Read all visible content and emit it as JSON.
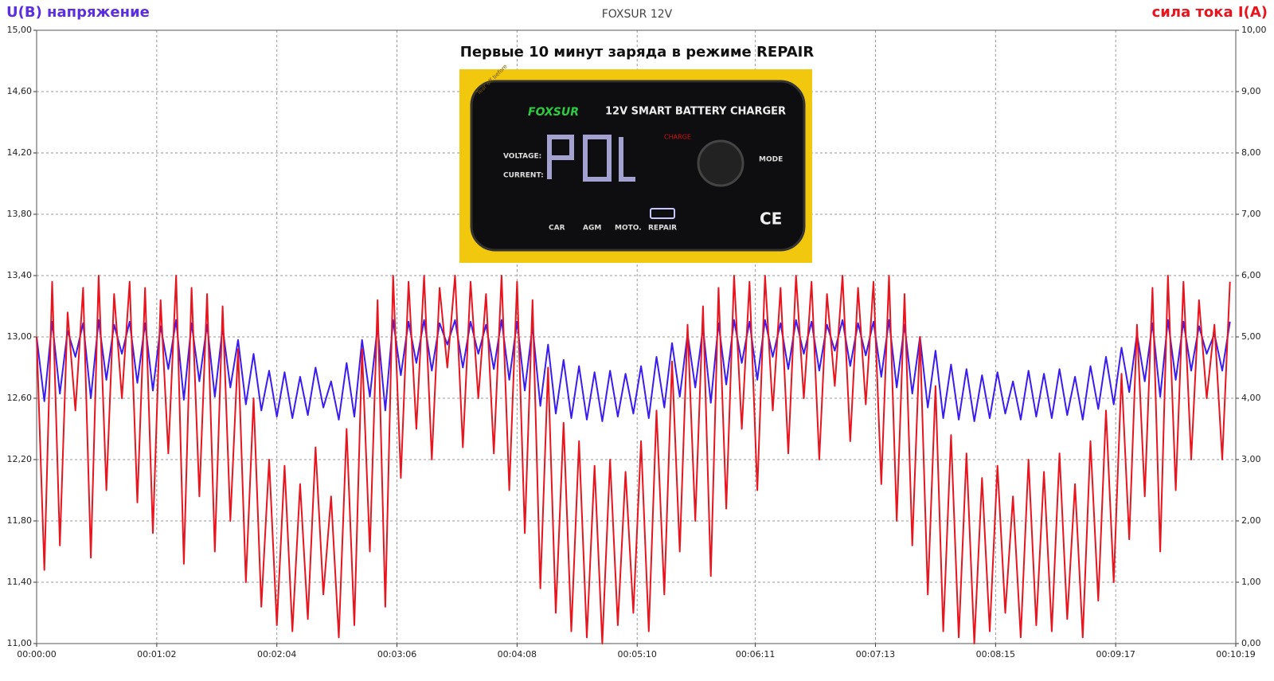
{
  "chart_data": {
    "type": "line",
    "title": "FOXSUR 12V",
    "annotation": "Первые 10 минут заряда в режиме REPAIR",
    "y_label": "U(B) напряжение",
    "y2_label": "сила тока I(A)",
    "inset": {
      "sticker": "Tear off before",
      "brand": "FOXSUR",
      "model": "12V SMART BATTERY CHARGER",
      "labels": [
        "VOLTAGE:",
        "CURRENT:",
        "CHARGE",
        "MODE",
        "CAR",
        "AGM",
        "MOTO.",
        "REPAIR"
      ]
    },
    "grid": true,
    "xlim": [
      0,
      619
    ],
    "xticks": [
      {
        "value": 0,
        "label": "00:00:00"
      },
      {
        "value": 62,
        "label": "00:01:02"
      },
      {
        "value": 124,
        "label": "00:02:04"
      },
      {
        "value": 186,
        "label": "00:03:06"
      },
      {
        "value": 248,
        "label": "00:04:08"
      },
      {
        "value": 310,
        "label": "00:05:10"
      },
      {
        "value": 371,
        "label": "00:06:11"
      },
      {
        "value": 433,
        "label": "00:07:13"
      },
      {
        "value": 495,
        "label": "00:08:15"
      },
      {
        "value": 557,
        "label": "00:09:17"
      },
      {
        "value": 619,
        "label": "00:10:19"
      }
    ],
    "ylim": [
      11,
      15
    ],
    "yticks": [
      {
        "value": 11,
        "label": "11,00"
      },
      {
        "value": 11.4,
        "label": "11,40"
      },
      {
        "value": 11.8,
        "label": "11,80"
      },
      {
        "value": 12.2,
        "label": "12,20"
      },
      {
        "value": 12.6,
        "label": "12,60"
      },
      {
        "value": 13,
        "label": "13,00"
      },
      {
        "value": 13.4,
        "label": "13,40"
      },
      {
        "value": 13.8,
        "label": "13,80"
      },
      {
        "value": 14.2,
        "label": "14,20"
      },
      {
        "value": 14.6,
        "label": "14,60"
      },
      {
        "value": 15,
        "label": "15,00"
      }
    ],
    "y2lim": [
      0,
      10
    ],
    "y2ticks": [
      {
        "value": 0,
        "label": "0,00"
      },
      {
        "value": 1,
        "label": "1,00"
      },
      {
        "value": 2,
        "label": "2,00"
      },
      {
        "value": 3,
        "label": "3,00"
      },
      {
        "value": 4,
        "label": "4,00"
      },
      {
        "value": 5,
        "label": "5,00"
      },
      {
        "value": 6,
        "label": "6,00"
      },
      {
        "value": 7,
        "label": "7,00"
      },
      {
        "value": 8,
        "label": "8,00"
      },
      {
        "value": 9,
        "label": "9,00"
      },
      {
        "value": 10,
        "label": "10,00"
      }
    ],
    "x": [
      0,
      4,
      8,
      12,
      16,
      20,
      24,
      28,
      32,
      36,
      40,
      44,
      48,
      52,
      56,
      60,
      64,
      68,
      72,
      76,
      80,
      84,
      88,
      92,
      96,
      100,
      104,
      108,
      112,
      116,
      120,
      124,
      128,
      132,
      136,
      140,
      144,
      148,
      152,
      156,
      160,
      164,
      168,
      172,
      176,
      180,
      184,
      188,
      192,
      196,
      200,
      204,
      208,
      212,
      216,
      220,
      224,
      228,
      232,
      236,
      240,
      244,
      248,
      252,
      256,
      260,
      264,
      268,
      272,
      276,
      280,
      284,
      288,
      292,
      296,
      300,
      304,
      308,
      312,
      316,
      320,
      324,
      328,
      332,
      336,
      340,
      344,
      348,
      352,
      356,
      360,
      364,
      368,
      372,
      376,
      380,
      384,
      388,
      392,
      396,
      400,
      404,
      408,
      412,
      416,
      420,
      424,
      428,
      432,
      436,
      440,
      444,
      448,
      452,
      456,
      460,
      464,
      468,
      472,
      476,
      480,
      484,
      488,
      492,
      496,
      500,
      504,
      508,
      512,
      516,
      520,
      524,
      528,
      532,
      536,
      540,
      544,
      548,
      552,
      556,
      560,
      564,
      568,
      572,
      576,
      580,
      584,
      588,
      592,
      596,
      600,
      604,
      608,
      612,
      616
    ],
    "series": [
      {
        "color": "#3a1cf0",
        "axis": "y",
        "values": [
          13.0,
          12.58,
          13.1,
          12.63,
          13.04,
          12.87,
          13.09,
          12.6,
          13.11,
          12.72,
          13.08,
          12.89,
          13.1,
          12.7,
          13.09,
          12.65,
          13.07,
          12.79,
          13.11,
          12.59,
          13.09,
          12.71,
          13.08,
          12.61,
          13.06,
          12.67,
          12.98,
          12.56,
          12.89,
          12.52,
          12.78,
          12.48,
          12.77,
          12.47,
          12.74,
          12.49,
          12.8,
          12.54,
          12.71,
          12.46,
          12.83,
          12.48,
          12.98,
          12.61,
          13.07,
          12.52,
          13.11,
          12.75,
          13.1,
          12.83,
          13.11,
          12.78,
          13.09,
          12.95,
          13.11,
          12.8,
          13.1,
          12.89,
          13.08,
          12.79,
          13.11,
          12.72,
          13.1,
          12.65,
          13.07,
          12.55,
          12.95,
          12.5,
          12.85,
          12.47,
          12.81,
          12.46,
          12.77,
          12.45,
          12.78,
          12.48,
          12.76,
          12.5,
          12.81,
          12.47,
          12.87,
          12.54,
          12.96,
          12.61,
          13.02,
          12.67,
          13.06,
          12.57,
          13.09,
          12.69,
          13.11,
          12.83,
          13.1,
          12.72,
          13.11,
          12.87,
          13.09,
          12.79,
          13.11,
          12.89,
          13.1,
          12.78,
          13.08,
          12.91,
          13.11,
          12.81,
          13.09,
          12.88,
          13.1,
          12.74,
          13.11,
          12.67,
          13.08,
          12.63,
          13.0,
          12.54,
          12.91,
          12.47,
          12.82,
          12.46,
          12.79,
          12.45,
          12.75,
          12.47,
          12.77,
          12.5,
          12.71,
          12.46,
          12.78,
          12.48,
          12.76,
          12.47,
          12.79,
          12.49,
          12.74,
          12.46,
          12.81,
          12.53,
          12.87,
          12.56,
          12.93,
          12.64,
          13.02,
          12.71,
          13.09,
          12.61,
          13.11,
          12.72,
          13.1,
          12.78,
          13.07,
          12.89,
          13.02,
          12.78,
          13.1
        ]
      },
      {
        "color": "#e8141e",
        "axis": "y2",
        "values": [
          5.0,
          1.2,
          5.9,
          1.6,
          5.4,
          3.8,
          5.8,
          1.4,
          6.0,
          2.5,
          5.7,
          4.0,
          5.9,
          2.3,
          5.8,
          1.8,
          5.6,
          3.1,
          6.0,
          1.3,
          5.8,
          2.4,
          5.7,
          1.5,
          5.5,
          2.0,
          4.8,
          1.0,
          4.0,
          0.6,
          3.0,
          0.3,
          2.9,
          0.2,
          2.6,
          0.4,
          3.2,
          0.8,
          2.4,
          0.1,
          3.5,
          0.3,
          4.8,
          1.5,
          5.6,
          0.6,
          6.0,
          2.7,
          5.9,
          3.5,
          6.0,
          3.0,
          5.8,
          4.5,
          6.0,
          3.2,
          5.9,
          4.0,
          5.7,
          3.1,
          6.0,
          2.5,
          5.9,
          1.8,
          5.6,
          0.9,
          4.5,
          0.5,
          3.6,
          0.2,
          3.3,
          0.1,
          2.9,
          0.0,
          3.0,
          0.3,
          2.8,
          0.5,
          3.3,
          0.2,
          3.8,
          0.8,
          4.6,
          1.5,
          5.2,
          2.0,
          5.5,
          1.1,
          5.8,
          2.2,
          6.0,
          3.5,
          5.9,
          2.5,
          6.0,
          3.8,
          5.8,
          3.1,
          6.0,
          4.0,
          5.9,
          3.0,
          5.7,
          4.2,
          6.0,
          3.3,
          5.8,
          3.9,
          5.9,
          2.6,
          6.0,
          2.0,
          5.7,
          1.6,
          5.0,
          0.8,
          4.2,
          0.2,
          3.4,
          0.1,
          3.1,
          0.0,
          2.7,
          0.2,
          2.9,
          0.5,
          2.4,
          0.1,
          3.0,
          0.3,
          2.8,
          0.2,
          3.1,
          0.4,
          2.6,
          0.1,
          3.3,
          0.7,
          3.8,
          1.0,
          4.4,
          1.7,
          5.2,
          2.4,
          5.8,
          1.5,
          6.0,
          2.5,
          5.9,
          3.0,
          5.6,
          4.0,
          5.2,
          3.0,
          5.9
        ]
      }
    ]
  }
}
